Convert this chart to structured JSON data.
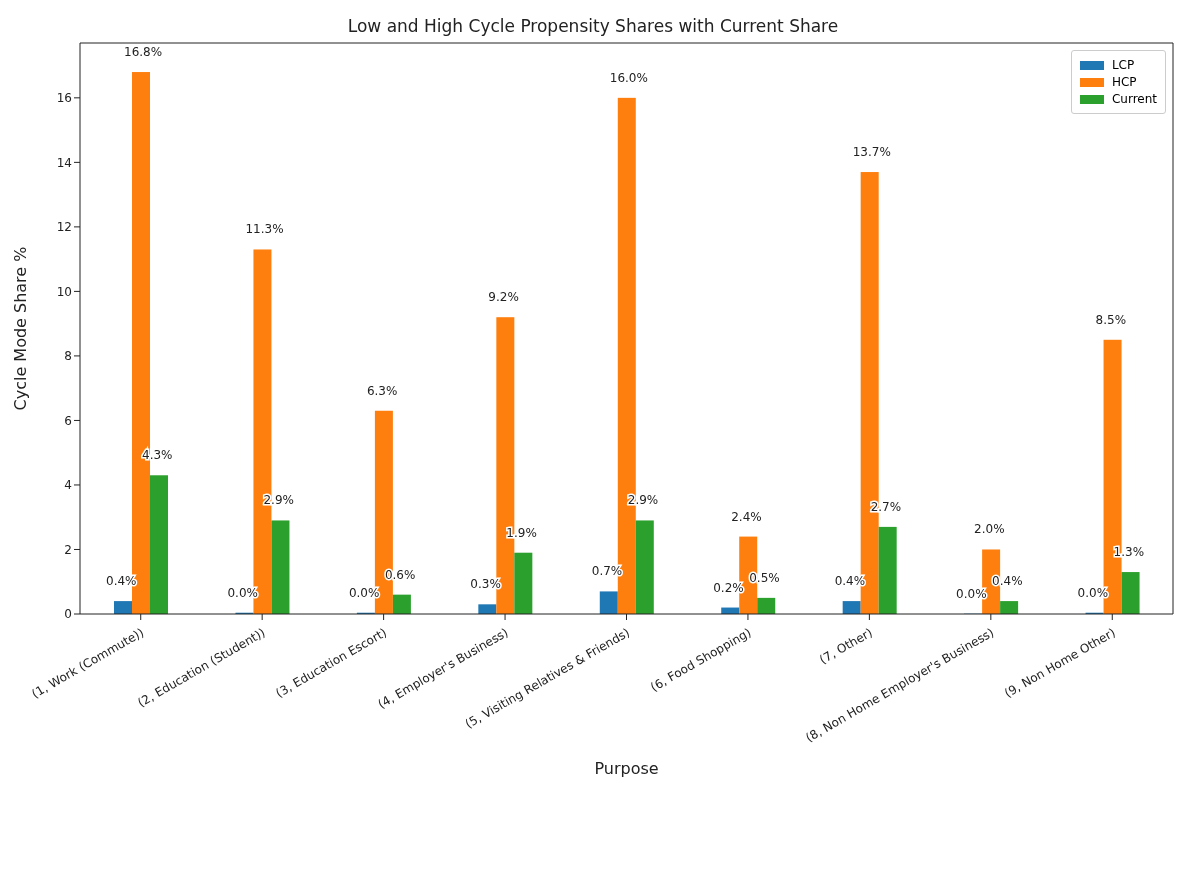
{
  "chart_data": {
    "type": "bar",
    "title": "Low and High Cycle Propensity Shares with Current Share",
    "xlabel": "Purpose",
    "ylabel": "Cycle Mode Share %",
    "categories": [
      "(1, Work (Commute))",
      "(2, Education (Student))",
      "(3, Education Escort)",
      "(4, Employer's Business)",
      "(5, Visiting Relatives & Friends)",
      "(6, Food Shopping)",
      "(7, Other)",
      "(8, Non Home Employer's Business)",
      "(9, Non Home Other)"
    ],
    "series": [
      {
        "name": "LCP",
        "color": "#1f77b4",
        "values": [
          0.4,
          0.04,
          0.04,
          0.3,
          0.7,
          0.2,
          0.4,
          0.01,
          0.04
        ],
        "value_labels": [
          "0.4%",
          "0.0%",
          "0.0%",
          "0.3%",
          "0.7%",
          "0.2%",
          "0.4%",
          "0.0%",
          "0.0%"
        ]
      },
      {
        "name": "HCP",
        "color": "#ff7f0e",
        "values": [
          16.8,
          11.3,
          6.3,
          9.2,
          16.0,
          2.4,
          13.7,
          2.0,
          8.5
        ],
        "value_labels": [
          "16.8%",
          "11.3%",
          "6.3%",
          "9.2%",
          "16.0%",
          "2.4%",
          "13.7%",
          "2.0%",
          "8.5%"
        ]
      },
      {
        "name": "Current",
        "color": "#2ca02c",
        "values": [
          4.3,
          2.9,
          0.6,
          1.9,
          2.9,
          0.5,
          2.7,
          0.4,
          1.3
        ],
        "value_labels": [
          "4.3%",
          "2.9%",
          "0.6%",
          "1.9%",
          "2.9%",
          "0.5%",
          "2.7%",
          "0.4%",
          "1.3%"
        ]
      }
    ],
    "ylim": [
      0,
      17.7
    ],
    "yticks": [
      0,
      2,
      4,
      6,
      8,
      10,
      12,
      14,
      16
    ],
    "grid": false,
    "legend": "top right"
  }
}
